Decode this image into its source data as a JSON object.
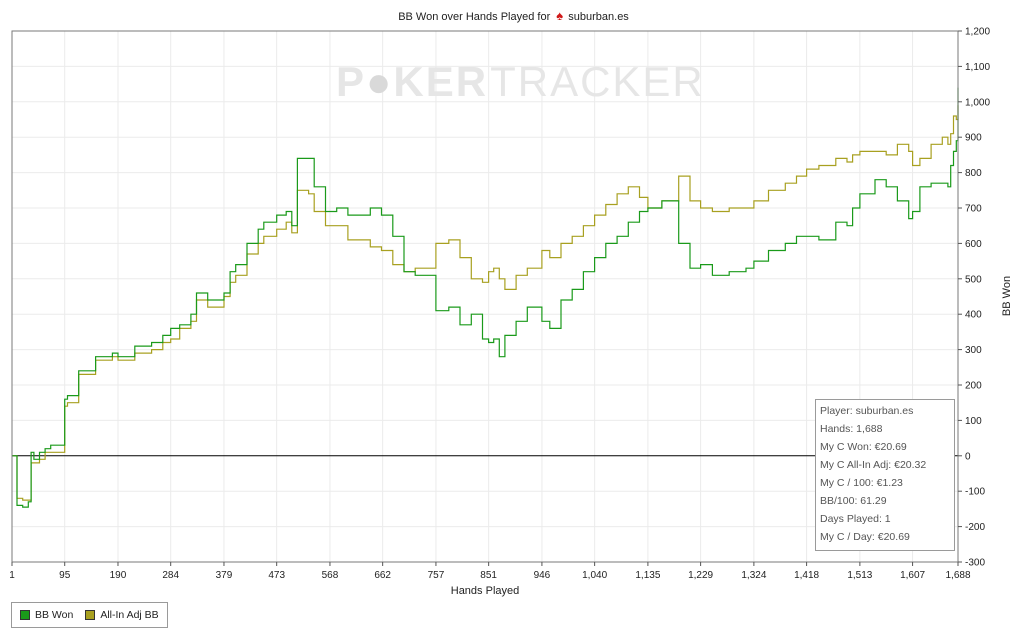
{
  "header": {
    "title_prefix": "BB Won over Hands Played for",
    "player": "suburban.es"
  },
  "watermark": {
    "part1": "P",
    "part2": "KER",
    "part3": "TRACKER"
  },
  "info_box": {
    "lines": [
      "Player: suburban.es",
      "Hands: 1,688",
      "My C Won: €20.69",
      "My C All-In Adj: €20.32",
      "My C / 100: €1.23",
      "BB/100: 61.29",
      "Days Played: 1",
      "My C / Day: €20.69"
    ]
  },
  "colors": {
    "bb_won": "#1a9a1a",
    "allin_adj": "#a8a020",
    "grid": "#ebebeb",
    "zero_line": "#000000"
  },
  "chart_data": {
    "type": "line",
    "title": "BB Won over Hands Played for suburban.es",
    "xlabel": "Hands Played",
    "ylabel": "BB Won",
    "xlim": [
      1,
      1688
    ],
    "ylim": [
      -300,
      1200
    ],
    "x_ticks": [
      1,
      95,
      190,
      284,
      379,
      473,
      568,
      662,
      757,
      851,
      946,
      1040,
      1135,
      1229,
      1324,
      1418,
      1513,
      1607,
      1688
    ],
    "x_tick_labels": [
      "1",
      "95",
      "190",
      "284",
      "379",
      "473",
      "568",
      "662",
      "757",
      "851",
      "946",
      "1,040",
      "1,135",
      "1,229",
      "1,324",
      "1,418",
      "1,513",
      "1,607",
      "1,688"
    ],
    "y_ticks": [
      -300,
      -200,
      -100,
      0,
      100,
      200,
      300,
      400,
      500,
      600,
      700,
      800,
      900,
      1000,
      1100,
      1200
    ],
    "y_tick_labels": [
      "-300",
      "-200",
      "-100",
      "0",
      "100",
      "200",
      "300",
      "400",
      "500",
      "600",
      "700",
      "800",
      "900",
      "1,000",
      "1,100",
      "1,200"
    ],
    "grid": true,
    "legend_position": "bottom-left",
    "series": [
      {
        "name": "BB Won",
        "color": "#1a9a1a",
        "x": [
          1,
          10,
          20,
          30,
          35,
          40,
          50,
          60,
          70,
          95,
          100,
          120,
          150,
          180,
          190,
          220,
          250,
          270,
          284,
          300,
          320,
          330,
          350,
          379,
          390,
          400,
          420,
          440,
          450,
          473,
          490,
          500,
          510,
          530,
          540,
          560,
          580,
          600,
          640,
          660,
          680,
          700,
          720,
          757,
          780,
          800,
          820,
          840,
          851,
          860,
          870,
          880,
          900,
          920,
          946,
          960,
          980,
          1000,
          1020,
          1040,
          1060,
          1080,
          1100,
          1120,
          1135,
          1160,
          1190,
          1210,
          1229,
          1250,
          1280,
          1310,
          1324,
          1350,
          1380,
          1400,
          1418,
          1440,
          1470,
          1490,
          1500,
          1513,
          1540,
          1560,
          1580,
          1600,
          1607,
          1620,
          1640,
          1660,
          1670,
          1675,
          1680,
          1685,
          1688
        ],
        "y": [
          0,
          -140,
          -145,
          -130,
          10,
          -10,
          10,
          20,
          30,
          160,
          170,
          240,
          280,
          290,
          280,
          310,
          320,
          340,
          360,
          370,
          400,
          460,
          440,
          460,
          520,
          540,
          600,
          640,
          660,
          680,
          690,
          650,
          840,
          840,
          760,
          690,
          700,
          680,
          700,
          680,
          620,
          520,
          510,
          410,
          420,
          370,
          400,
          330,
          320,
          330,
          280,
          340,
          380,
          420,
          380,
          360,
          440,
          470,
          520,
          560,
          600,
          620,
          660,
          690,
          700,
          720,
          600,
          530,
          540,
          510,
          520,
          530,
          550,
          580,
          600,
          620,
          620,
          610,
          660,
          650,
          700,
          740,
          780,
          760,
          720,
          670,
          690,
          760,
          770,
          770,
          760,
          820,
          860,
          890,
          1040
        ]
      },
      {
        "name": "All-In Adj BB",
        "color": "#a8a020",
        "x": [
          1,
          10,
          20,
          30,
          35,
          40,
          50,
          60,
          70,
          95,
          100,
          120,
          150,
          180,
          190,
          220,
          250,
          270,
          284,
          300,
          320,
          330,
          350,
          379,
          390,
          400,
          420,
          440,
          450,
          473,
          490,
          500,
          510,
          530,
          540,
          560,
          580,
          600,
          640,
          660,
          680,
          700,
          720,
          757,
          780,
          800,
          820,
          840,
          851,
          860,
          870,
          880,
          900,
          920,
          946,
          960,
          980,
          1000,
          1020,
          1040,
          1060,
          1080,
          1100,
          1120,
          1135,
          1160,
          1190,
          1210,
          1229,
          1250,
          1280,
          1310,
          1324,
          1350,
          1380,
          1400,
          1418,
          1440,
          1470,
          1490,
          1500,
          1513,
          1540,
          1560,
          1580,
          1600,
          1607,
          1620,
          1640,
          1660,
          1670,
          1675,
          1680,
          1685,
          1688
        ],
        "y": [
          0,
          -120,
          -125,
          -125,
          -20,
          -20,
          -10,
          10,
          10,
          140,
          150,
          230,
          270,
          280,
          270,
          290,
          300,
          320,
          330,
          360,
          380,
          440,
          420,
          450,
          490,
          510,
          570,
          600,
          620,
          640,
          660,
          630,
          750,
          740,
          690,
          650,
          650,
          610,
          590,
          580,
          540,
          520,
          530,
          600,
          610,
          560,
          500,
          490,
          520,
          530,
          500,
          470,
          510,
          530,
          580,
          560,
          600,
          620,
          650,
          680,
          710,
          740,
          760,
          730,
          700,
          720,
          790,
          720,
          700,
          690,
          700,
          700,
          720,
          750,
          770,
          790,
          810,
          820,
          840,
          830,
          850,
          860,
          860,
          850,
          880,
          860,
          820,
          840,
          880,
          900,
          880,
          910,
          960,
          950,
          990
        ]
      }
    ]
  },
  "legend": {
    "items": [
      "BB Won",
      "All-In Adj BB"
    ]
  }
}
